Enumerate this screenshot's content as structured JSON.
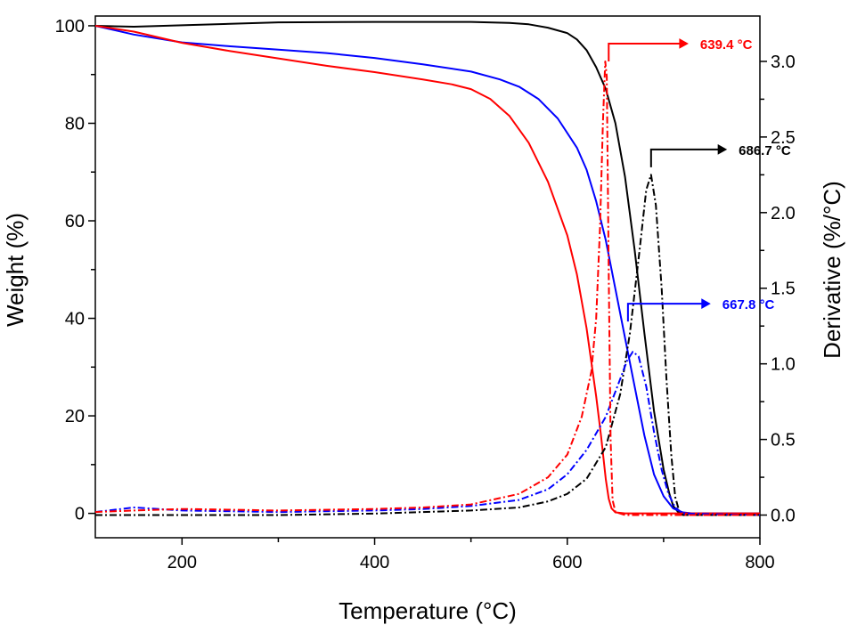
{
  "chart_data": {
    "type": "line",
    "xlabel": "Temperature (°C)",
    "ylabel_left": "Weight (%)",
    "ylabel_right": "Derivative (%/°C)",
    "xlim": [
      110,
      800
    ],
    "ylim_left": [
      -5,
      102
    ],
    "ylim_right": [
      -0.15,
      3.3
    ],
    "x_ticks": [
      200,
      400,
      600,
      800
    ],
    "y_left_ticks": [
      0,
      20,
      40,
      60,
      80,
      100
    ],
    "y_right_ticks": [
      0.0,
      0.5,
      1.0,
      1.5,
      2.0,
      2.5,
      3.0
    ],
    "y_right_tick_labels": [
      "0.0",
      "0.5",
      "1.0",
      "1.5",
      "2.0",
      "2.5",
      "3.0"
    ],
    "series": [
      {
        "name": "black-weight",
        "axis": "left",
        "color": "#000000",
        "style": "solid",
        "points": [
          [
            110,
            100
          ],
          [
            150,
            99.8
          ],
          [
            200,
            100.1
          ],
          [
            300,
            100.7
          ],
          [
            400,
            100.8
          ],
          [
            500,
            100.8
          ],
          [
            540,
            100.6
          ],
          [
            560,
            100.3
          ],
          [
            580,
            99.6
          ],
          [
            600,
            98.5
          ],
          [
            610,
            97.2
          ],
          [
            620,
            95
          ],
          [
            630,
            91.5
          ],
          [
            640,
            87
          ],
          [
            650,
            80
          ],
          [
            660,
            69
          ],
          [
            670,
            54
          ],
          [
            680,
            37
          ],
          [
            690,
            21
          ],
          [
            700,
            9
          ],
          [
            706,
            4
          ],
          [
            710,
            1.5
          ],
          [
            715,
            0.3
          ],
          [
            720,
            0
          ],
          [
            800,
            0
          ]
        ]
      },
      {
        "name": "blue-weight",
        "axis": "left",
        "color": "#0000ff",
        "style": "solid",
        "points": [
          [
            110,
            100
          ],
          [
            150,
            98.2
          ],
          [
            200,
            96.6
          ],
          [
            250,
            95.8
          ],
          [
            300,
            95.1
          ],
          [
            350,
            94.4
          ],
          [
            400,
            93.4
          ],
          [
            450,
            92.1
          ],
          [
            500,
            90.6
          ],
          [
            530,
            89
          ],
          [
            550,
            87.5
          ],
          [
            570,
            85
          ],
          [
            590,
            81
          ],
          [
            610,
            75
          ],
          [
            620,
            70.5
          ],
          [
            630,
            64
          ],
          [
            640,
            56
          ],
          [
            650,
            46
          ],
          [
            660,
            36
          ],
          [
            670,
            26
          ],
          [
            680,
            16
          ],
          [
            690,
            8
          ],
          [
            700,
            3.5
          ],
          [
            710,
            1
          ],
          [
            720,
            0.2
          ],
          [
            730,
            0
          ],
          [
            800,
            0
          ]
        ]
      },
      {
        "name": "red-weight",
        "axis": "left",
        "color": "#ff0000",
        "style": "solid",
        "points": [
          [
            110,
            100
          ],
          [
            150,
            98.8
          ],
          [
            200,
            96.5
          ],
          [
            250,
            94.8
          ],
          [
            300,
            93.3
          ],
          [
            350,
            91.8
          ],
          [
            400,
            90.5
          ],
          [
            450,
            89
          ],
          [
            480,
            88
          ],
          [
            500,
            87
          ],
          [
            520,
            85
          ],
          [
            540,
            81.5
          ],
          [
            560,
            76
          ],
          [
            580,
            68
          ],
          [
            600,
            57
          ],
          [
            610,
            49
          ],
          [
            620,
            38
          ],
          [
            630,
            24
          ],
          [
            635,
            16
          ],
          [
            640,
            7
          ],
          [
            643,
            3
          ],
          [
            646,
            1
          ],
          [
            650,
            0.2
          ],
          [
            660,
            0
          ],
          [
            800,
            0
          ]
        ]
      },
      {
        "name": "black-derivative",
        "axis": "right",
        "color": "#000000",
        "style": "dashdot",
        "points": [
          [
            110,
            0
          ],
          [
            200,
            0
          ],
          [
            300,
            0
          ],
          [
            400,
            0.01
          ],
          [
            500,
            0.03
          ],
          [
            550,
            0.05
          ],
          [
            580,
            0.09
          ],
          [
            600,
            0.14
          ],
          [
            620,
            0.24
          ],
          [
            640,
            0.45
          ],
          [
            655,
            0.8
          ],
          [
            665,
            1.2
          ],
          [
            675,
            1.75
          ],
          [
            682,
            2.15
          ],
          [
            687,
            2.25
          ],
          [
            692,
            2.05
          ],
          [
            698,
            1.5
          ],
          [
            703,
            0.9
          ],
          [
            708,
            0.4
          ],
          [
            712,
            0.12
          ],
          [
            716,
            0.03
          ],
          [
            720,
            0
          ],
          [
            800,
            0
          ]
        ]
      },
      {
        "name": "blue-derivative",
        "axis": "right",
        "color": "#0000ff",
        "style": "dashdot",
        "points": [
          [
            110,
            0.02
          ],
          [
            150,
            0.05
          ],
          [
            200,
            0.03
          ],
          [
            300,
            0.02
          ],
          [
            400,
            0.03
          ],
          [
            450,
            0.04
          ],
          [
            500,
            0.06
          ],
          [
            550,
            0.1
          ],
          [
            580,
            0.17
          ],
          [
            600,
            0.27
          ],
          [
            620,
            0.43
          ],
          [
            640,
            0.65
          ],
          [
            655,
            0.9
          ],
          [
            662,
            1.02
          ],
          [
            668,
            1.08
          ],
          [
            674,
            1.05
          ],
          [
            682,
            0.85
          ],
          [
            690,
            0.55
          ],
          [
            698,
            0.3
          ],
          [
            705,
            0.14
          ],
          [
            712,
            0.05
          ],
          [
            720,
            0.01
          ],
          [
            800,
            0
          ]
        ]
      },
      {
        "name": "red-derivative",
        "axis": "right",
        "color": "#ff0000",
        "style": "dashdot",
        "points": [
          [
            110,
            0.02
          ],
          [
            150,
            0.03
          ],
          [
            200,
            0.04
          ],
          [
            300,
            0.03
          ],
          [
            400,
            0.04
          ],
          [
            450,
            0.05
          ],
          [
            500,
            0.07
          ],
          [
            550,
            0.14
          ],
          [
            580,
            0.25
          ],
          [
            600,
            0.4
          ],
          [
            615,
            0.65
          ],
          [
            625,
            0.95
          ],
          [
            630,
            1.3
          ],
          [
            634,
            1.9
          ],
          [
            637,
            2.6
          ],
          [
            639.4,
            3.0
          ],
          [
            641,
            2.9
          ],
          [
            643,
            1.6
          ],
          [
            645,
            0.5
          ],
          [
            647,
            0.1
          ],
          [
            650,
            0.02
          ],
          [
            660,
            0
          ],
          [
            800,
            0
          ]
        ]
      }
    ],
    "annotations": [
      {
        "label": "639.4 °C",
        "color": "#ff0000",
        "x": 643,
        "y": 3.0,
        "arrow_to_x": 725,
        "axis": "right"
      },
      {
        "label": "686.7 °C",
        "color": "#000000",
        "x": 687,
        "y": 2.3,
        "arrow_to_x": 765,
        "axis": "right"
      },
      {
        "label": "667.8 °C",
        "color": "#0000ff",
        "x": 663,
        "y": 1.28,
        "arrow_to_x": 748,
        "axis": "right"
      }
    ]
  }
}
